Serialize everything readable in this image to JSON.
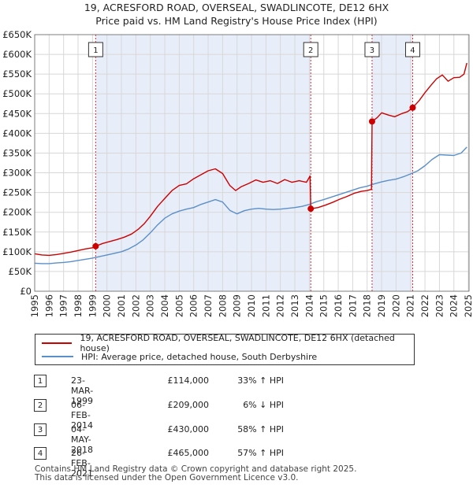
{
  "title_line1": "19, ACRESFORD ROAD, OVERSEAL, SWADLINCOTE, DE12 6HX",
  "title_line2": "Price paid vs. HM Land Registry's House Price Index (HPI)",
  "chart_data": {
    "type": "line",
    "ylim": [
      0,
      650000
    ],
    "xlim": [
      1995,
      2025.05
    ],
    "y_ticks": [
      0,
      50000,
      100000,
      150000,
      200000,
      250000,
      300000,
      350000,
      400000,
      450000,
      500000,
      550000,
      600000,
      650000
    ],
    "y_tick_labels": [
      "£0",
      "£50K",
      "£100K",
      "£150K",
      "£200K",
      "£250K",
      "£300K",
      "£350K",
      "£400K",
      "£450K",
      "£500K",
      "£550K",
      "£600K",
      "£650K"
    ],
    "x_ticks": [
      1995,
      1996,
      1997,
      1998,
      1999,
      2000,
      2001,
      2002,
      2003,
      2004,
      2005,
      2006,
      2007,
      2008,
      2009,
      2010,
      2011,
      2012,
      2013,
      2014,
      2015,
      2016,
      2017,
      2018,
      2019,
      2020,
      2021,
      2022,
      2023,
      2024,
      2025
    ],
    "shaded_periods": [
      [
        1999.22,
        2014.1
      ],
      [
        2018.34,
        2021.15
      ]
    ],
    "series": [
      {
        "name": "19, ACRESFORD ROAD, OVERSEAL, SWADLINCOTE, DE12 6HX (detached house)",
        "color": "#cc0000",
        "x": [
          1995.0,
          1995.5,
          1996.0,
          1996.5,
          1997.0,
          1997.5,
          1998.0,
          1998.5,
          1999.0,
          1999.22,
          1999.7,
          2000.2,
          2000.7,
          2001.2,
          2001.7,
          2002.2,
          2002.6,
          2003.0,
          2003.5,
          2004.0,
          2004.5,
          2005.0,
          2005.5,
          2006.0,
          2006.5,
          2007.0,
          2007.5,
          2008.0,
          2008.5,
          2008.9,
          2009.3,
          2009.8,
          2010.3,
          2010.8,
          2011.3,
          2011.8,
          2012.3,
          2012.8,
          2013.3,
          2013.8,
          2014.05,
          2014.1,
          2014.6,
          2015.1,
          2015.6,
          2016.1,
          2016.6,
          2017.1,
          2017.6,
          2018.0,
          2018.3,
          2018.34,
          2018.7,
          2019.0,
          2019.5,
          2019.9,
          2020.4,
          2020.8,
          2021.15,
          2021.6,
          2022.0,
          2022.4,
          2022.8,
          2023.2,
          2023.6,
          2024.0,
          2024.4,
          2024.7,
          2024.9
        ],
        "values": [
          95000,
          92000,
          91000,
          93000,
          96000,
          99000,
          103000,
          107000,
          110000,
          114000,
          121000,
          126000,
          131000,
          137000,
          145000,
          158000,
          172000,
          190000,
          215000,
          235000,
          255000,
          268000,
          272000,
          285000,
          295000,
          305000,
          310000,
          298000,
          268000,
          255000,
          265000,
          273000,
          282000,
          276000,
          280000,
          273000,
          283000,
          276000,
          280000,
          276000,
          292000,
          209000,
          212000,
          218000,
          225000,
          233000,
          240000,
          248000,
          253000,
          255000,
          258000,
          430000,
          440000,
          452000,
          446000,
          442000,
          450000,
          455000,
          465000,
          483000,
          503000,
          521000,
          538000,
          548000,
          532000,
          541000,
          542000,
          550000,
          578000
        ]
      },
      {
        "name": "HPI: Average price, detached house, South Derbyshire",
        "color": "#5b8fc9",
        "x": [
          1995.0,
          1995.5,
          1996.0,
          1996.5,
          1997.0,
          1997.5,
          1998.0,
          1998.5,
          1999.0,
          1999.5,
          2000.0,
          2000.5,
          2001.0,
          2001.5,
          2002.0,
          2002.5,
          2003.0,
          2003.5,
          2004.0,
          2004.5,
          2005.0,
          2005.5,
          2006.0,
          2006.5,
          2007.0,
          2007.5,
          2008.0,
          2008.5,
          2009.0,
          2009.5,
          2010.0,
          2010.5,
          2011.0,
          2011.5,
          2012.0,
          2012.5,
          2013.0,
          2013.5,
          2014.0,
          2014.5,
          2015.0,
          2015.5,
          2016.0,
          2016.5,
          2017.0,
          2017.5,
          2018.0,
          2018.5,
          2019.0,
          2019.5,
          2020.0,
          2020.5,
          2021.0,
          2021.5,
          2022.0,
          2022.5,
          2023.0,
          2023.5,
          2024.0,
          2024.5,
          2024.9
        ],
        "values": [
          71000,
          70000,
          70000,
          71500,
          73000,
          75000,
          78000,
          81000,
          84000,
          88000,
          92000,
          96000,
          100000,
          107000,
          117000,
          130000,
          148000,
          168000,
          185000,
          196000,
          203000,
          208000,
          212000,
          220000,
          226000,
          232000,
          226000,
          205000,
          196000,
          204000,
          208000,
          210000,
          208000,
          207000,
          208000,
          210000,
          212000,
          215000,
          220000,
          227000,
          232000,
          238000,
          244000,
          250000,
          256000,
          262000,
          266000,
          272000,
          277000,
          281000,
          284000,
          290000,
          297000,
          305000,
          318000,
          334000,
          346000,
          345000,
          344000,
          350000,
          365000
        ]
      }
    ],
    "sales": [
      {
        "id": "1",
        "date": "23-MAR-1999",
        "x": 1999.22,
        "price": 114000,
        "price_label": "£114,000",
        "hpi": "33% ↑ HPI"
      },
      {
        "id": "2",
        "date": "06-FEB-2014",
        "x": 2014.1,
        "price": 209000,
        "price_label": "£209,000",
        "hpi": "6% ↓ HPI"
      },
      {
        "id": "3",
        "date": "04-MAY-2018",
        "x": 2018.34,
        "price": 430000,
        "price_label": "£430,000",
        "hpi": "58% ↑ HPI"
      },
      {
        "id": "4",
        "date": "26-FEB-2021",
        "x": 2021.15,
        "price": 465000,
        "price_label": "£465,000",
        "hpi": "57% ↑ HPI"
      }
    ]
  },
  "legend": {
    "property_label": "19, ACRESFORD ROAD, OVERSEAL, SWADLINCOTE, DE12 6HX (detached house)",
    "hpi_label": "HPI: Average price, detached house, South Derbyshire",
    "property_color": "#cc0000",
    "hpi_color": "#5b8fc9"
  },
  "footer_line1": "Contains HM Land Registry data © Crown copyright and database right 2025.",
  "footer_line2": "This data is licensed under the Open Government Licence v3.0."
}
